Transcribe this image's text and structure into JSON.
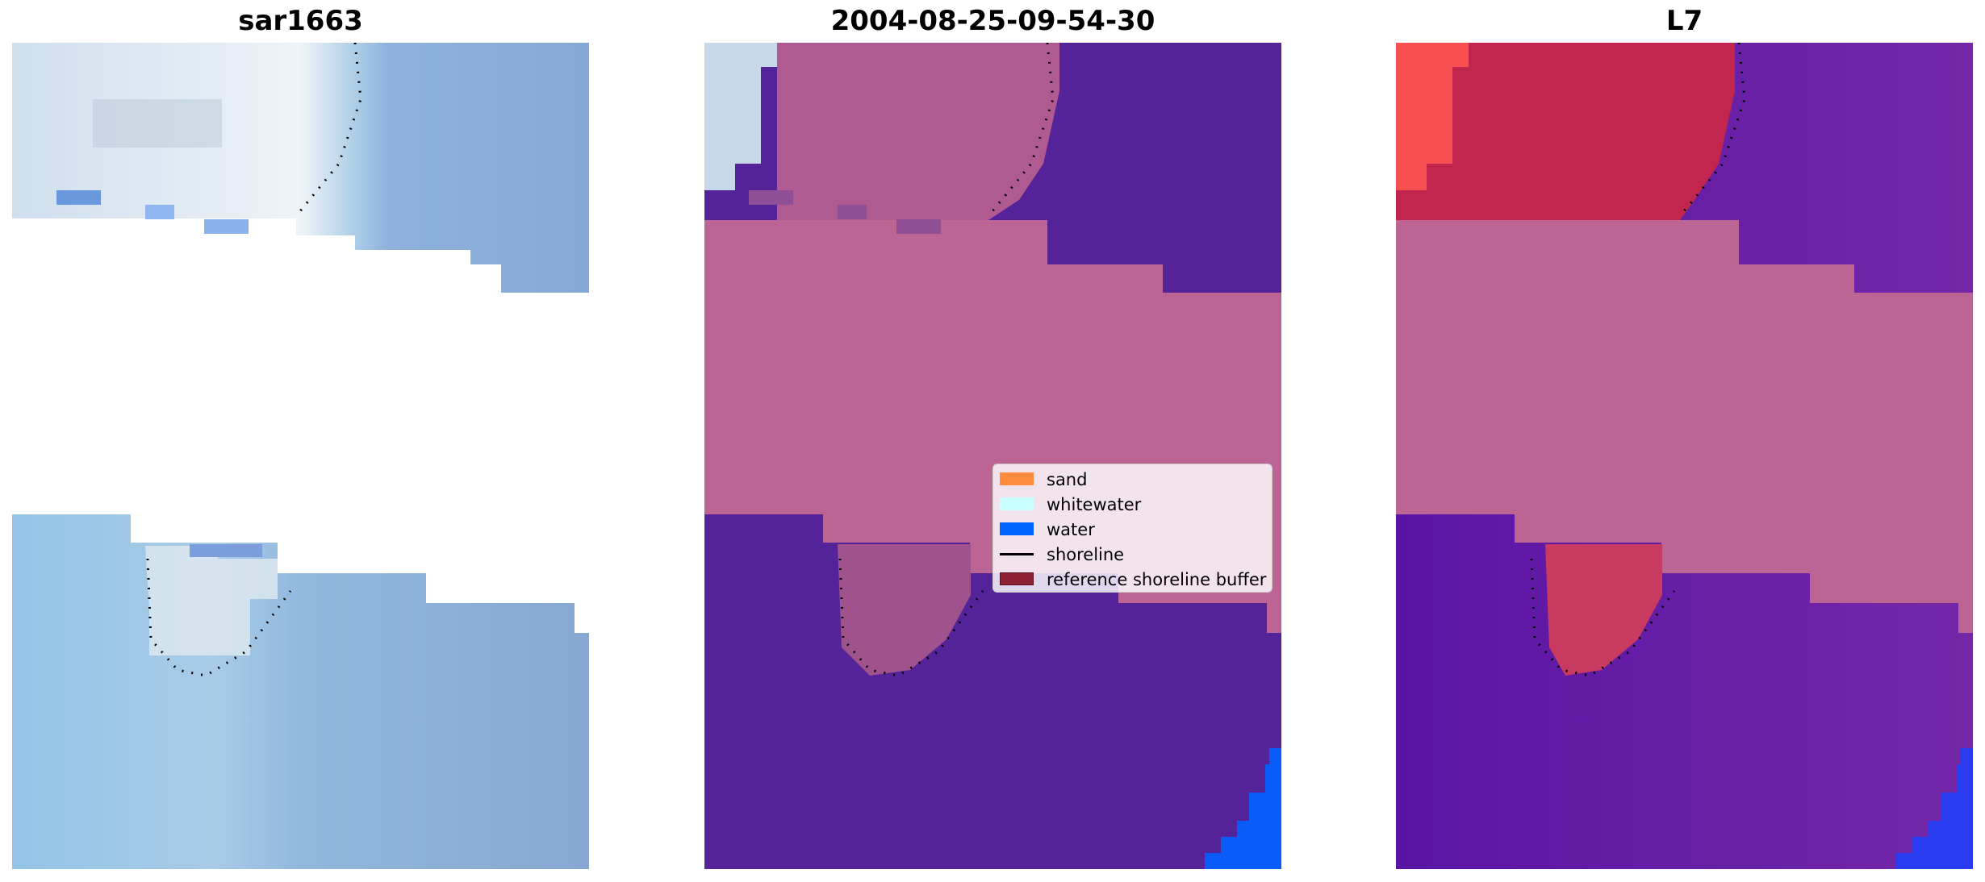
{
  "panels": [
    {
      "title": "sar1663"
    },
    {
      "title": "2004-08-25-09-54-30"
    },
    {
      "title": "L7"
    }
  ],
  "legend": {
    "items": [
      {
        "label": "sand",
        "color": "#ff8c3c",
        "kind": "patch"
      },
      {
        "label": "whitewater",
        "color": "#c8ffff",
        "kind": "patch"
      },
      {
        "label": "water",
        "color": "#0064ff",
        "kind": "patch"
      },
      {
        "label": "shoreline",
        "color": "#000000",
        "kind": "line"
      },
      {
        "label": "reference shoreline buffer",
        "color": "#8b2030",
        "kind": "patch"
      }
    ]
  },
  "colors": {
    "sky_light": "#b8d4ec",
    "water_blue": "#86aad6",
    "buffer_pink": "#bc6594",
    "class_water_purple": "#54239a",
    "water_bright": "#0a5cf8",
    "false_color_red": "#c2264e",
    "false_color_purple": "#6a1da0"
  }
}
